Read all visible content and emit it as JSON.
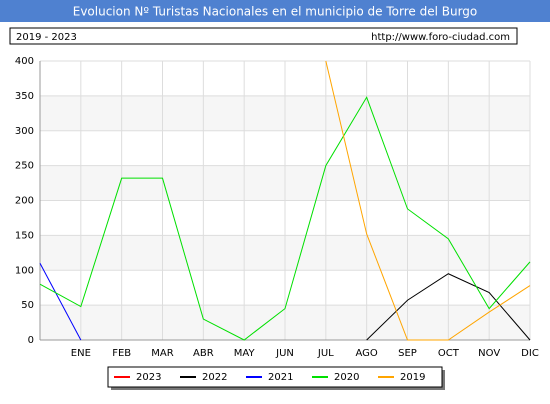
{
  "chart_data": {
    "type": "line",
    "title": "Evolucion Nº Turistas Nacionales en el municipio de Torre del Burgo",
    "subtitle": "2019 - 2023",
    "source": "http://www.foro-ciudad.com",
    "categories": [
      null,
      "ENE",
      "FEB",
      "MAR",
      "ABR",
      "MAY",
      "JUN",
      "JUL",
      "AGO",
      "SEP",
      "OCT",
      "NOV",
      "DIC"
    ],
    "series": [
      {
        "name": "2023",
        "color": "#ff0000",
        "values": [
          null,
          null,
          null,
          null,
          null,
          null,
          null,
          null,
          null,
          null,
          null,
          null,
          null
        ]
      },
      {
        "name": "2022",
        "color": "#000000",
        "values": [
          null,
          null,
          null,
          null,
          null,
          null,
          null,
          null,
          0,
          57,
          95,
          68,
          0
        ]
      },
      {
        "name": "2021",
        "color": "#0000ff",
        "values": [
          110,
          0,
          null,
          null,
          null,
          null,
          null,
          null,
          null,
          null,
          null,
          null,
          null
        ]
      },
      {
        "name": "2020",
        "color": "#00e000",
        "values": [
          80,
          48,
          232,
          232,
          30,
          0,
          45,
          250,
          348,
          188,
          145,
          45,
          112
        ]
      },
      {
        "name": "2019",
        "color": "#ffa500",
        "values": [
          null,
          null,
          null,
          null,
          null,
          null,
          null,
          400,
          152,
          0,
          0,
          40,
          78
        ]
      }
    ],
    "ylim": [
      0,
      400
    ],
    "yticks": [
      0,
      50,
      100,
      150,
      200,
      250,
      300,
      350,
      400
    ],
    "grid": true
  }
}
